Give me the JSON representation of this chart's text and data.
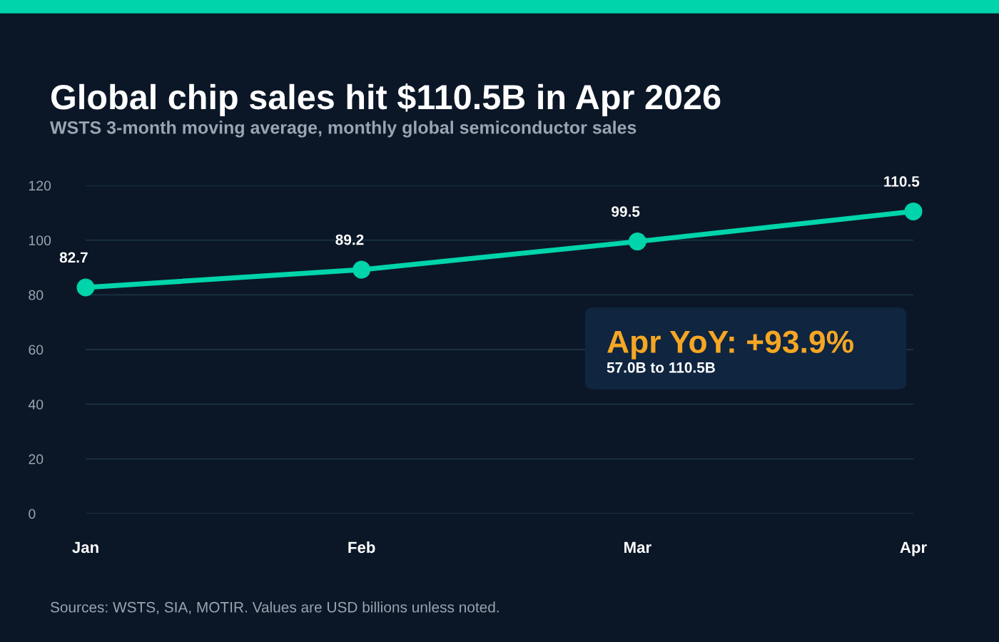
{
  "chart_data": {
    "type": "line",
    "title": "Global chip sales hit $110.5B in Apr 2026",
    "subtitle": "WSTS 3-month moving average, monthly global semiconductor sales",
    "categories": [
      "Jan",
      "Feb",
      "Mar",
      "Apr"
    ],
    "series": [
      {
        "color": "#00d4aa",
        "values": [
          82.7,
          89.2,
          99.5,
          110.5
        ]
      }
    ],
    "ylim": [
      0,
      120
    ],
    "yticks": [
      0,
      20,
      40,
      60,
      80,
      100,
      120
    ],
    "grid": "y",
    "marker": "circle",
    "line_style": "solid",
    "data_labels": true,
    "legend": false,
    "annotations": [
      "Apr YoY: +93.9%",
      "57.0B to 110.5B",
      "Sources: WSTS, SIA, MOTIR. Values are USD billions unless noted."
    ]
  }
}
